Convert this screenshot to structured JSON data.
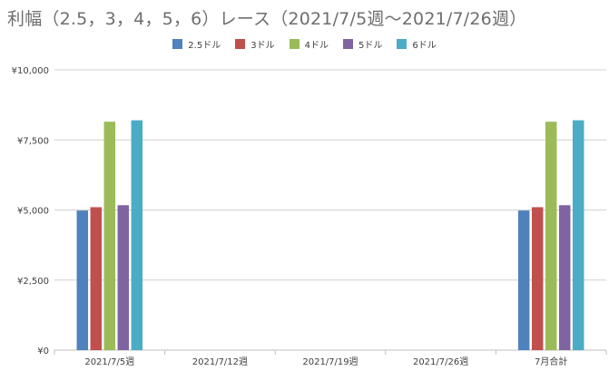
{
  "chart_data": {
    "type": "bar",
    "title": "利幅（2.5，3，4，5，6）レース（2021/7/5週～2021/7/26週）",
    "categories": [
      "2021/7/5週",
      "2021/7/12週",
      "2021/7/19週",
      "2021/7/26週",
      "7月合計"
    ],
    "series": [
      {
        "name": "2.5ドル",
        "color": "#4f81bd",
        "values": [
          4980,
          0,
          0,
          0,
          4980
        ]
      },
      {
        "name": "3ドル",
        "color": "#c0504d",
        "values": [
          5100,
          0,
          0,
          0,
          5100
        ]
      },
      {
        "name": "4ドル",
        "color": "#9bbb59",
        "values": [
          8150,
          0,
          0,
          0,
          8150
        ]
      },
      {
        "name": "5ドル",
        "color": "#8064a2",
        "values": [
          5170,
          0,
          0,
          0,
          5170
        ]
      },
      {
        "name": "6ドル",
        "color": "#4bacc6",
        "values": [
          8200,
          0,
          0,
          0,
          8200
        ]
      }
    ],
    "ylim": [
      0,
      10000
    ],
    "yticks": [
      0,
      2500,
      5000,
      7500,
      10000
    ],
    "ytick_labels": [
      "¥0",
      "¥2,500",
      "¥5,000",
      "¥7,500",
      "¥10,000"
    ],
    "grid": true,
    "legend_position": "top"
  }
}
